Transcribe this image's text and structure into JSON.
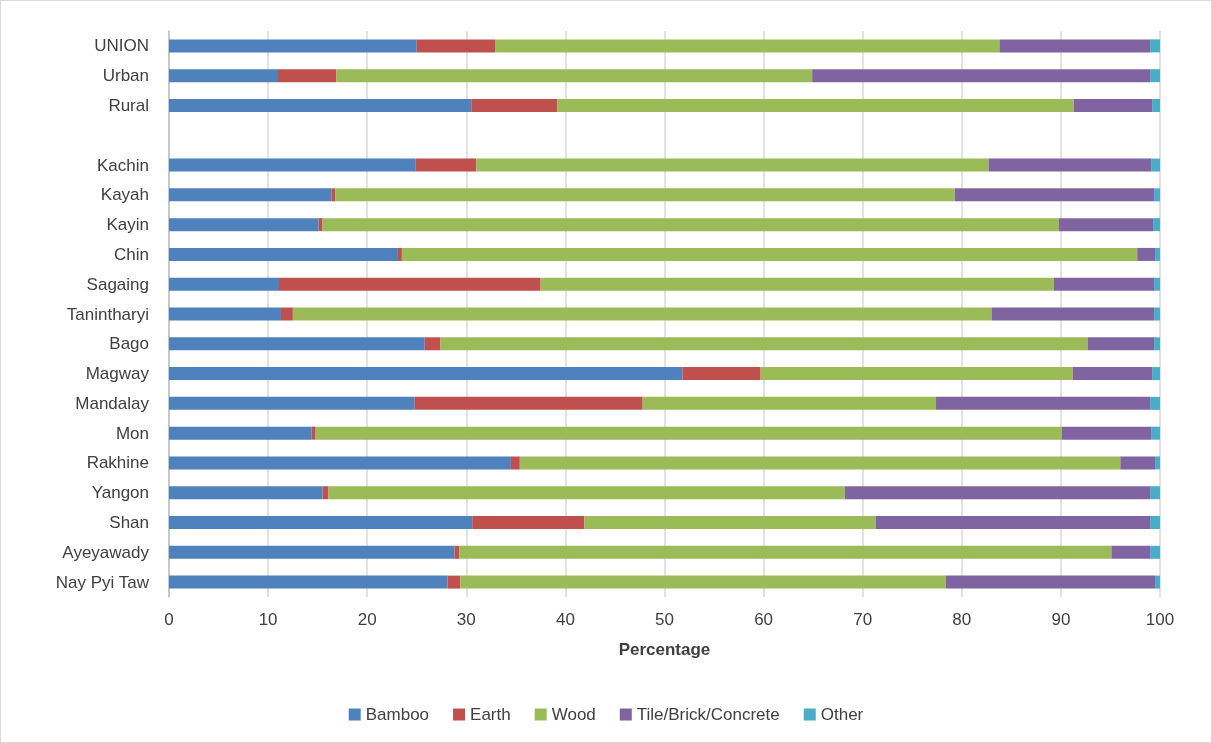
{
  "chart_data": {
    "type": "bar",
    "orientation": "horizontal",
    "stacked": true,
    "xlabel": "Percentage",
    "categories": [
      "UNION",
      "Urban",
      "Rural",
      null,
      "Kachin",
      "Kayah",
      "Kayin",
      "Chin",
      "Sagaing",
      "Tanintharyi",
      "Bago",
      "Magway",
      "Mandalay",
      "Mon",
      "Rakhine",
      "Yangon",
      "Shan",
      "Ayeyawady",
      "Nay Pyi Taw"
    ],
    "series": [
      {
        "name": "Bamboo",
        "color": "#4f81bd",
        "values": [
          25.0,
          11.0,
          30.5,
          null,
          24.9,
          16.4,
          15.1,
          23.1,
          11.1,
          11.3,
          25.8,
          51.8,
          24.8,
          14.4,
          34.5,
          15.5,
          30.6,
          28.8,
          28.1
        ]
      },
      {
        "name": "Earth",
        "color": "#c0504d",
        "values": [
          7.9,
          5.9,
          8.7,
          null,
          6.1,
          0.4,
          0.4,
          0.4,
          26.4,
          1.2,
          1.6,
          7.9,
          23.0,
          0.4,
          0.9,
          0.6,
          11.3,
          0.5,
          1.3
        ]
      },
      {
        "name": "Wood",
        "color": "#9bbb59",
        "values": [
          50.9,
          48.0,
          52.1,
          null,
          51.7,
          62.5,
          74.3,
          74.2,
          51.8,
          70.5,
          65.3,
          31.5,
          29.6,
          75.3,
          60.6,
          52.1,
          29.4,
          65.8,
          49.0
        ]
      },
      {
        "name": "Tile/Brick/Concrete",
        "color": "#8064a2",
        "values": [
          15.2,
          34.1,
          7.9,
          null,
          16.4,
          20.1,
          9.5,
          1.8,
          10.1,
          16.4,
          6.7,
          8.0,
          21.6,
          9.0,
          3.5,
          30.8,
          27.7,
          3.9,
          21.1
        ]
      },
      {
        "name": "Other",
        "color": "#4bacc6",
        "values": [
          1.0,
          1.0,
          0.8,
          null,
          0.9,
          0.6,
          0.7,
          0.5,
          0.6,
          0.6,
          0.6,
          0.8,
          1.0,
          0.9,
          0.5,
          1.0,
          1.0,
          1.0,
          0.5
        ]
      }
    ],
    "xlim": [
      0,
      100
    ],
    "xticks": [
      0,
      10,
      20,
      30,
      40,
      50,
      60,
      70,
      80,
      90,
      100
    ],
    "grid": "x",
    "legend": "bottom"
  }
}
